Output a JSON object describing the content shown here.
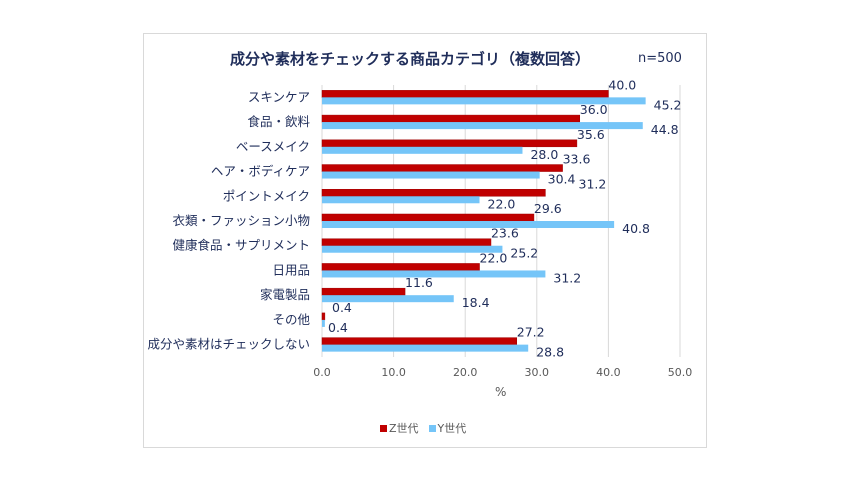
{
  "chart_data": {
    "type": "bar",
    "orientation": "horizontal",
    "title": "成分や素材をチェックする商品カテゴリ（複数回答）",
    "note": "n=500",
    "xlabel": "%",
    "xlim": [
      0,
      50
    ],
    "xticks": [
      "0.0",
      "10.0",
      "20.0",
      "30.0",
      "40.0",
      "50.0"
    ],
    "grid": true,
    "legend_position": "bottom",
    "categories": [
      "スキンケア",
      "食品・飲料",
      "ベースメイク",
      "ヘア・ボディケア",
      "ポイントメイク",
      "衣類・ファッション小物",
      "健康食品・サプリメント",
      "日用品",
      "家電製品",
      "その他",
      "成分や素材はチェックしない"
    ],
    "series": [
      {
        "name": "Z世代",
        "color": "#c00000",
        "values": [
          40.0,
          36.0,
          35.6,
          33.6,
          31.2,
          29.6,
          23.6,
          22.0,
          11.6,
          0.4,
          27.2
        ]
      },
      {
        "name": "Y世代",
        "color": "#75c5f8",
        "values": [
          45.2,
          44.8,
          28.0,
          30.4,
          22.0,
          40.8,
          25.2,
          31.2,
          18.4,
          0.4,
          28.8
        ]
      }
    ]
  }
}
